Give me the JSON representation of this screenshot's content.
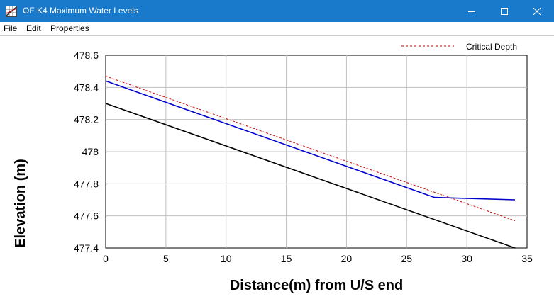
{
  "window": {
    "title": "OF K4 Maximum Water Levels",
    "title_bar_color": "#1979ca",
    "app_icon": "grid-chart-icon",
    "controls": [
      "minimize-icon",
      "maximize-icon",
      "close-icon"
    ]
  },
  "menu": {
    "items": [
      {
        "label": "File"
      },
      {
        "label": "Edit"
      },
      {
        "label": "Properties"
      }
    ]
  },
  "chart_data": {
    "type": "line",
    "xlabel": "Distance(m) from U/S end",
    "ylabel": "Elevation (m)",
    "xlim": [
      0,
      35
    ],
    "ylim": [
      477.4,
      478.6
    ],
    "x_ticks": [
      "0",
      "5",
      "10",
      "15",
      "20",
      "25",
      "30",
      "35"
    ],
    "x_tick_values": [
      0,
      5,
      10,
      15,
      20,
      25,
      30,
      35
    ],
    "y_ticks": [
      "478.6",
      "478.4",
      "478.2",
      "478",
      "477.8",
      "477.6",
      "477.4"
    ],
    "y_tick_values": [
      478.6,
      478.4,
      478.2,
      478.0,
      477.8,
      477.6,
      477.4
    ],
    "grid": true,
    "legend_position": "top-right",
    "series": [
      {
        "name": "Critical Depth",
        "color": "#cc0000",
        "style": "dotted",
        "x": [
          0,
          34
        ],
        "y": [
          478.47,
          477.57
        ]
      },
      {
        "color": "#0000cc",
        "style": "solid",
        "x": [
          0,
          27.3,
          34
        ],
        "y": [
          478.44,
          477.715,
          477.7
        ]
      },
      {
        "color": "#000000",
        "style": "solid",
        "x": [
          0,
          34
        ],
        "y": [
          478.3,
          477.4
        ]
      }
    ]
  }
}
